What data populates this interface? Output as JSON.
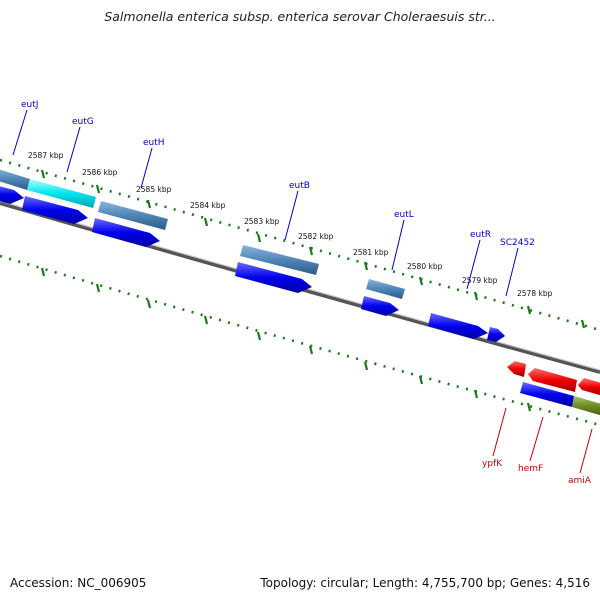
{
  "title": "Salmonella enterica subsp. enterica serovar Choleraesuis str...",
  "footer": {
    "accession": "Accession: NC_006905",
    "topology": "Topology: circular; Length: 4,755,700 bp; Genes: 4,516"
  },
  "kbp_labels": [
    "2587 kbp",
    "2586 kbp",
    "2585 kbp",
    "2584 kbp",
    "2583 kbp",
    "2582 kbp",
    "2581 kbp",
    "2580 kbp",
    "2579 kbp",
    "2578 kbp"
  ],
  "genes_top": [
    "eutJ",
    "eutG",
    "eutH",
    "eutB",
    "eutL",
    "eutR",
    "SC2452"
  ],
  "genes_bottom": [
    "ypfK",
    "hemF",
    "amiA"
  ],
  "colors": {
    "forward_gene": "#0000ee",
    "reverse_gene": "#ee0000",
    "feature_steel": "#4f86b8",
    "feature_cyan": "#00e5ee",
    "feature_olive": "#6b8e23",
    "label_blue": "#0000cc",
    "label_red": "#cc0000",
    "tick_green": "#1a7a1a",
    "backbone": "#808080"
  }
}
